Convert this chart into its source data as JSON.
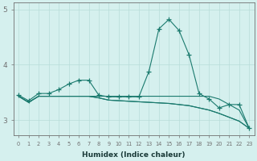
{
  "xlabel": "Humidex (Indice chaleur)",
  "x": [
    0,
    1,
    2,
    3,
    4,
    5,
    6,
    7,
    8,
    9,
    10,
    11,
    12,
    13,
    14,
    15,
    16,
    17,
    18,
    19,
    20,
    21,
    22,
    23
  ],
  "line1": [
    3.45,
    3.35,
    3.48,
    3.48,
    3.55,
    3.65,
    3.72,
    3.72,
    3.45,
    3.42,
    3.42,
    3.42,
    3.42,
    3.88,
    4.65,
    4.82,
    4.62,
    4.18,
    3.48,
    3.38,
    3.22,
    3.28,
    3.28,
    2.85
  ],
  "line2": [
    3.43,
    3.32,
    3.43,
    3.43,
    3.43,
    3.43,
    3.43,
    3.43,
    3.43,
    3.43,
    3.43,
    3.43,
    3.43,
    3.43,
    3.43,
    3.43,
    3.43,
    3.43,
    3.43,
    3.43,
    3.38,
    3.28,
    3.18,
    2.85
  ],
  "line3": [
    3.43,
    3.32,
    3.43,
    3.43,
    3.43,
    3.43,
    3.43,
    3.43,
    3.4,
    3.36,
    3.35,
    3.34,
    3.33,
    3.32,
    3.31,
    3.3,
    3.28,
    3.26,
    3.22,
    3.18,
    3.12,
    3.05,
    2.98,
    2.85
  ],
  "line4": [
    3.43,
    3.32,
    3.43,
    3.43,
    3.43,
    3.43,
    3.43,
    3.43,
    3.4,
    3.36,
    3.35,
    3.34,
    3.33,
    3.32,
    3.31,
    3.3,
    3.28,
    3.26,
    3.22,
    3.18,
    3.12,
    3.05,
    2.98,
    2.85
  ],
  "line_color": "#1a7a6e",
  "bg_color": "#d5f0ee",
  "grid_color": "#b8ddd9",
  "axis_color": "#707070",
  "ylim": [
    2.72,
    5.12
  ],
  "yticks": [
    3,
    4,
    5
  ],
  "ytick_labels": [
    "3",
    "4",
    "5"
  ],
  "marker": "+",
  "markersize": 4,
  "linewidth": 0.8
}
